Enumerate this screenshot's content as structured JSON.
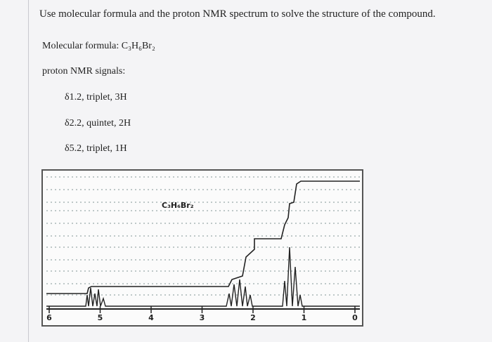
{
  "question": "Use molecular formula and the proton NMR spectrum to solve the structure of the compound.",
  "molecular_formula": "Molecular formula: C₃H₆Br₂",
  "signals_heading": "proton NMR signals:",
  "signals": [
    "δ1.2, triplet, 3H",
    "δ2.2, quintet, 2H",
    "δ5.2, triplet, 1H"
  ],
  "spectrum": {
    "label": "C₃H₆Br₂",
    "axis_labels": [
      "6",
      "5",
      "4",
      "3",
      "2",
      "1",
      "0"
    ]
  }
}
